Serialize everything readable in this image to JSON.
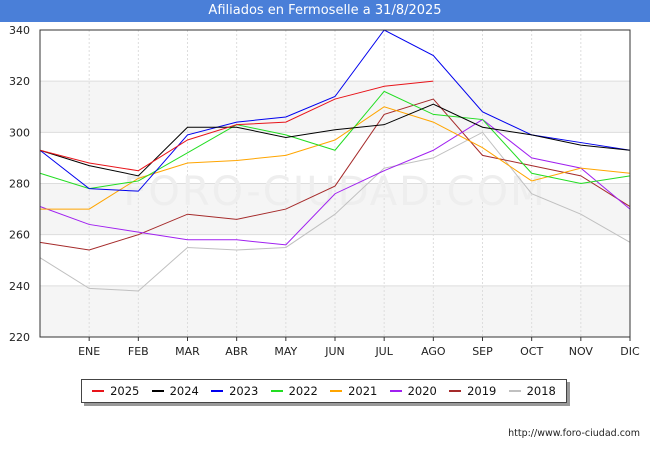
{
  "title": "Afiliados en Fermoselle a 31/8/2025",
  "source": "http://www.foro-ciudad.com",
  "watermark": "FORO-CIUDAD.COM",
  "chart_data": {
    "type": "line",
    "title": "Afiliados en Fermoselle a 31/8/2025",
    "categories": [
      "",
      "ENE",
      "FEB",
      "MAR",
      "ABR",
      "MAY",
      "JUN",
      "JUL",
      "AGO",
      "SEP",
      "OCT",
      "NOV",
      "DIC"
    ],
    "y_ticks": [
      220,
      240,
      260,
      280,
      300,
      320,
      340
    ],
    "ylim": [
      220,
      340
    ],
    "grid": true,
    "legend_position": "bottom",
    "series": [
      {
        "name": "2025",
        "color": "#e8141a",
        "values": [
          293,
          288,
          285,
          297,
          303,
          304,
          313,
          318,
          320,
          null,
          null,
          null,
          null
        ]
      },
      {
        "name": "2024",
        "color": "#000000",
        "values": [
          293,
          287,
          283,
          302,
          302,
          298,
          301,
          303,
          311,
          302,
          299,
          295,
          293
        ]
      },
      {
        "name": "2023",
        "color": "#0000ee",
        "values": [
          293,
          278,
          277,
          299,
          304,
          306,
          314,
          340,
          330,
          308,
          299,
          296,
          293
        ]
      },
      {
        "name": "2022",
        "color": "#22dd22",
        "values": [
          284,
          278,
          281,
          292,
          303,
          299,
          293,
          316,
          307,
          305,
          284,
          280,
          283
        ]
      },
      {
        "name": "2021",
        "color": "#ffa500",
        "values": [
          270,
          270,
          282,
          288,
          289,
          291,
          297,
          310,
          304,
          294,
          281,
          286,
          284
        ]
      },
      {
        "name": "2020",
        "color": "#a020f0",
        "values": [
          271,
          264,
          261,
          258,
          258,
          256,
          276,
          285,
          293,
          305,
          290,
          286,
          270
        ]
      },
      {
        "name": "2019",
        "color": "#a52a2a",
        "values": [
          257,
          254,
          260,
          268,
          266,
          270,
          279,
          307,
          313,
          291,
          287,
          283,
          271
        ]
      },
      {
        "name": "2018",
        "color": "#c0c0c0",
        "values": [
          251,
          239,
          238,
          255,
          254,
          255,
          268,
          286,
          290,
          300,
          276,
          268,
          257
        ]
      }
    ]
  }
}
